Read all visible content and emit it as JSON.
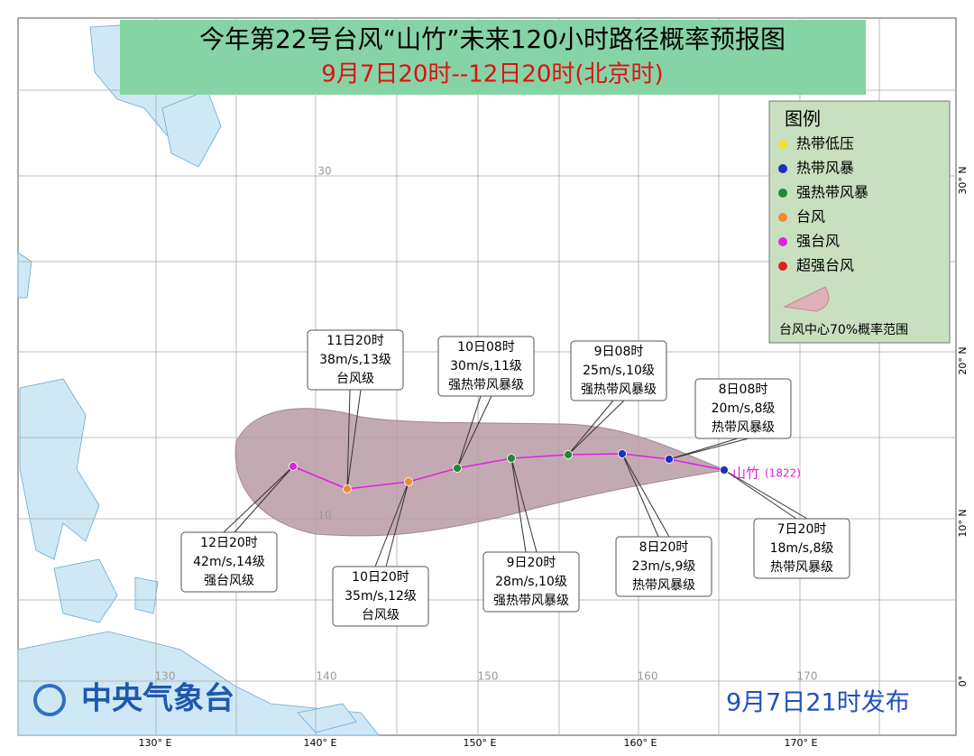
{
  "header": {
    "title": "今年第22号台风“山竹”未来120小时路径概率预报图",
    "subtitle": "9月7日20时--12日20时(北京时)"
  },
  "legend": {
    "title": "图例",
    "items": [
      {
        "name": "热带低压",
        "color": "#f0e030"
      },
      {
        "name": "热带风暴",
        "color": "#1a30c0"
      },
      {
        "name": "强热带风暴",
        "color": "#208a30"
      },
      {
        "name": "台风",
        "color": "#f08a30"
      },
      {
        "name": "强台风",
        "color": "#e020e0"
      },
      {
        "name": "超强台风",
        "color": "#e02020"
      }
    ],
    "range_label": "台风中心70%概率范围"
  },
  "typhoon": {
    "name": "山竹",
    "code": "(1822)",
    "track_color": "#e020e0"
  },
  "points": [
    {
      "time": "7日20时",
      "wind": "18m/s,8级",
      "level": "热带风暴级",
      "color": "#1a30c0"
    },
    {
      "time": "8日08时",
      "wind": "20m/s,8级",
      "level": "热带风暴级",
      "color": "#1a30c0"
    },
    {
      "time": "8日20时",
      "wind": "23m/s,9级",
      "level": "热带风暴级",
      "color": "#1a30c0"
    },
    {
      "time": "9日08时",
      "wind": "25m/s,10级",
      "level": "强热带风暴级",
      "color": "#208a30"
    },
    {
      "time": "9日20时",
      "wind": "28m/s,10级",
      "level": "强热带风暴级",
      "color": "#208a30"
    },
    {
      "time": "10日08时",
      "wind": "30m/s,11级",
      "level": "强热带风暴级",
      "color": "#208a30"
    },
    {
      "time": "10日20时",
      "wind": "35m/s,12级",
      "level": "台风级",
      "color": "#f08a30"
    },
    {
      "time": "11日20时",
      "wind": "38m/s,13级",
      "level": "台风级",
      "color": "#f08a30"
    },
    {
      "time": "12日20时",
      "wind": "42m/s,14级",
      "level": "强台风级",
      "color": "#e020e0"
    }
  ],
  "map": {
    "lon_labels": [
      "130° E",
      "140° E",
      "150° E",
      "160° E",
      "170° E"
    ],
    "lat_labels": [
      "30° N",
      "20° N",
      "10° N",
      "0°"
    ],
    "inner_lon": [
      "130",
      "140",
      "150",
      "160",
      "170"
    ],
    "inner_lat": [
      "30",
      "10"
    ]
  },
  "footer": {
    "agency": "中央气象台",
    "release": "9月7日21时发布"
  }
}
